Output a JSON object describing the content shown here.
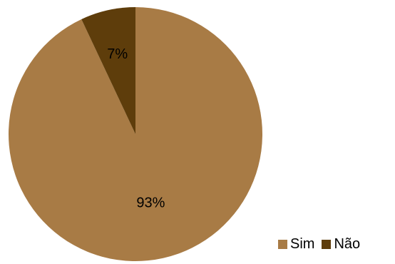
{
  "chart_data": {
    "type": "pie",
    "categories": [
      "Sim",
      "Não"
    ],
    "values": [
      93,
      7
    ],
    "labels": [
      "93%",
      "7%"
    ],
    "colors": [
      "#A87B45",
      "#5E3D0B"
    ],
    "start_angle_deg": 0,
    "direction": "clockwise",
    "legend_position": "bottom-right",
    "title": ""
  }
}
